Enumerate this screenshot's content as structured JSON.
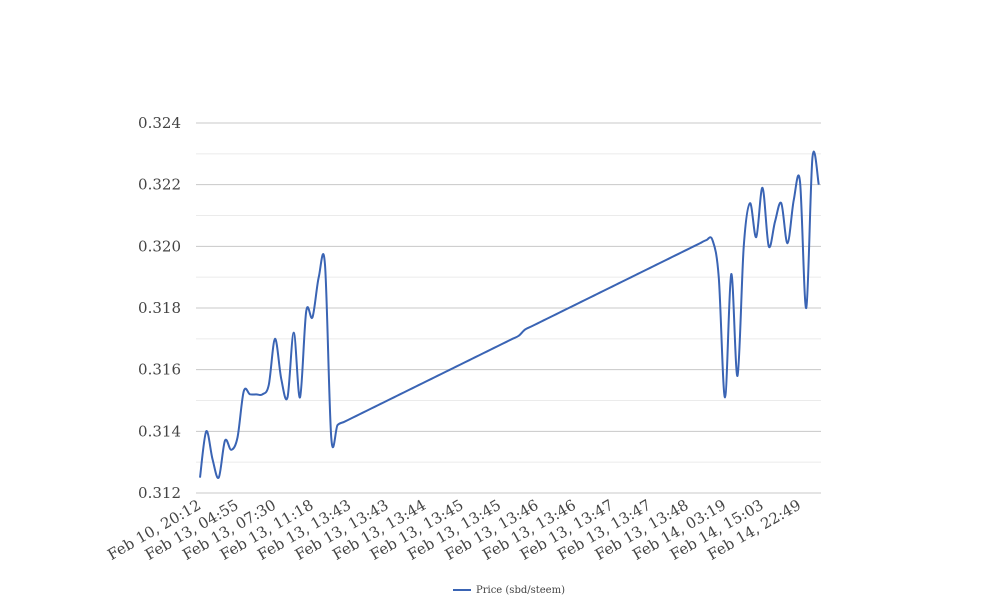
{
  "chart_data": {
    "type": "line",
    "categories": [
      "Feb 10, 20:12",
      null,
      null,
      null,
      null,
      null,
      "Feb 13, 04:55",
      null,
      null,
      null,
      null,
      null,
      "Feb 13, 07:30",
      null,
      null,
      null,
      null,
      null,
      "Feb 13, 11:18",
      null,
      null,
      null,
      null,
      null,
      "Feb 13, 13:43",
      null,
      null,
      null,
      null,
      null,
      "Feb 13, 13:43",
      null,
      null,
      null,
      null,
      null,
      "Feb 13, 13:44",
      null,
      null,
      null,
      null,
      null,
      "Feb 13, 13:45",
      null,
      null,
      null,
      null,
      null,
      "Feb 13, 13:45",
      null,
      null,
      null,
      null,
      null,
      "Feb 13, 13:46",
      null,
      null,
      null,
      null,
      null,
      "Feb 13, 13:46",
      null,
      null,
      null,
      null,
      null,
      "Feb 13, 13:47",
      null,
      null,
      null,
      null,
      null,
      "Feb 13, 13:47",
      null,
      null,
      null,
      null,
      null,
      "Feb 13, 13:48",
      null,
      null,
      null,
      null,
      null,
      "Feb 14, 03:19",
      null,
      null,
      null,
      null,
      null,
      "Feb 14, 15:03",
      null,
      null,
      null,
      null,
      null,
      "Feb 14, 22:49",
      null,
      null,
      null
    ],
    "series": [
      {
        "name": "Price (sbd/steem)",
        "color": "#3a64b4",
        "values": [
          0.3125,
          0.314,
          0.3131,
          0.3125,
          0.3137,
          0.3134,
          0.3138,
          0.3153,
          0.3152,
          0.3152,
          0.3152,
          0.3155,
          0.317,
          0.3157,
          0.3151,
          0.3172,
          0.3151,
          0.3179,
          0.3177,
          0.319,
          0.3194,
          0.3138,
          0.3142,
          0.3143,
          0.3144,
          0.3145,
          0.3146,
          0.3147,
          0.3148,
          0.3149,
          0.315,
          0.3151,
          0.3152,
          0.3153,
          0.3154,
          0.3155,
          0.3156,
          0.3157,
          0.3158,
          0.3159,
          0.316,
          0.3161,
          0.3162,
          0.3163,
          0.3164,
          0.3165,
          0.3166,
          0.3167,
          0.3168,
          0.3169,
          0.317,
          0.3171,
          0.3173,
          0.3174,
          0.3175,
          0.3176,
          0.3177,
          0.3178,
          0.3179,
          0.318,
          0.3181,
          0.3182,
          0.3183,
          0.3184,
          0.3185,
          0.3186,
          0.3187,
          0.3188,
          0.3189,
          0.319,
          0.3191,
          0.3192,
          0.3193,
          0.3194,
          0.3195,
          0.3196,
          0.3197,
          0.3198,
          0.3199,
          0.32,
          0.3201,
          0.3202,
          0.3202,
          0.319,
          0.3151,
          0.3191,
          0.3158,
          0.32,
          0.3214,
          0.3203,
          0.3219,
          0.32,
          0.3208,
          0.3214,
          0.3201,
          0.3215,
          0.3221,
          0.318,
          0.3229,
          0.322
        ]
      }
    ],
    "ylim": [
      0.312,
      0.324
    ],
    "yticks": [
      0.312,
      0.314,
      0.316,
      0.318,
      {
        "value": 0.32,
        "label": "0.320"
      },
      0.322,
      0.324
    ],
    "minor_yticks": [
      0.313,
      0.315,
      0.317,
      0.319,
      0.321,
      0.323
    ],
    "grid": true,
    "legend": "bottom",
    "smooth": true
  }
}
